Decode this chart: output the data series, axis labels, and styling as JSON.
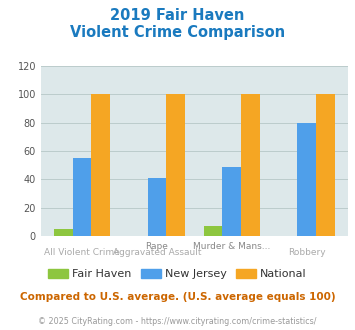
{
  "title_line1": "2019 Fair Haven",
  "title_line2": "Violent Crime Comparison",
  "series": {
    "Fair Haven": [
      5,
      0,
      7,
      0
    ],
    "New Jersey": [
      55,
      41,
      49,
      80
    ],
    "National": [
      100,
      100,
      100,
      100
    ]
  },
  "colors": {
    "Fair Haven": "#8dc63f",
    "New Jersey": "#4f9fea",
    "National": "#f5a623"
  },
  "top_labels": [
    "",
    "Rape",
    "Murder & Mans...",
    ""
  ],
  "bot_labels": [
    "All Violent Crime",
    "Aggravated Assault",
    "",
    "Robbery"
  ],
  "ylim": [
    0,
    120
  ],
  "yticks": [
    0,
    20,
    40,
    60,
    80,
    100,
    120
  ],
  "grid_color": "#bbcccc",
  "bg_color": "#dde8ea",
  "title_color": "#1a7abf",
  "label_top_color": "#888888",
  "label_bot_color": "#aaaaaa",
  "legend_text_color": "#333333",
  "footer_text": "Compared to U.S. average. (U.S. average equals 100)",
  "footer_color": "#cc6600",
  "copyright_text": "© 2025 CityRating.com - https://www.cityrating.com/crime-statistics/",
  "copyright_color": "#999999"
}
